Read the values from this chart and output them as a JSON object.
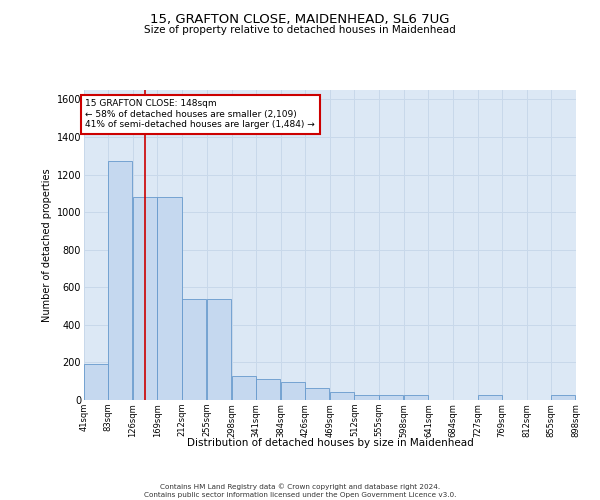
{
  "title_line1": "15, GRAFTON CLOSE, MAIDENHEAD, SL6 7UG",
  "title_line2": "Size of property relative to detached houses in Maidenhead",
  "xlabel": "Distribution of detached houses by size in Maidenhead",
  "ylabel": "Number of detached properties",
  "annotation_title": "15 GRAFTON CLOSE: 148sqm",
  "annotation_line2": "← 58% of detached houses are smaller (2,109)",
  "annotation_line3": "41% of semi-detached houses are larger (1,484) →",
  "footer_line1": "Contains HM Land Registry data © Crown copyright and database right 2024.",
  "footer_line2": "Contains public sector information licensed under the Open Government Licence v3.0.",
  "bin_edges": [
    41,
    83,
    126,
    169,
    212,
    255,
    298,
    341,
    384,
    426,
    469,
    512,
    555,
    598,
    641,
    684,
    727,
    769,
    812,
    855,
    898
  ],
  "bin_counts": [
    190,
    1270,
    1080,
    1080,
    540,
    540,
    130,
    110,
    95,
    65,
    40,
    25,
    25,
    25,
    0,
    0,
    25,
    0,
    0,
    25,
    0
  ],
  "bar_color": "#c5d8ef",
  "bar_edge_color": "#6699cc",
  "vline_color": "#cc0000",
  "vline_x": 148,
  "annotation_box_color": "#cc0000",
  "grid_color": "#c8d8ea",
  "bg_color": "#dce8f5",
  "ylim": [
    0,
    1650
  ],
  "yticks": [
    0,
    200,
    400,
    600,
    800,
    1000,
    1200,
    1400,
    1600
  ]
}
